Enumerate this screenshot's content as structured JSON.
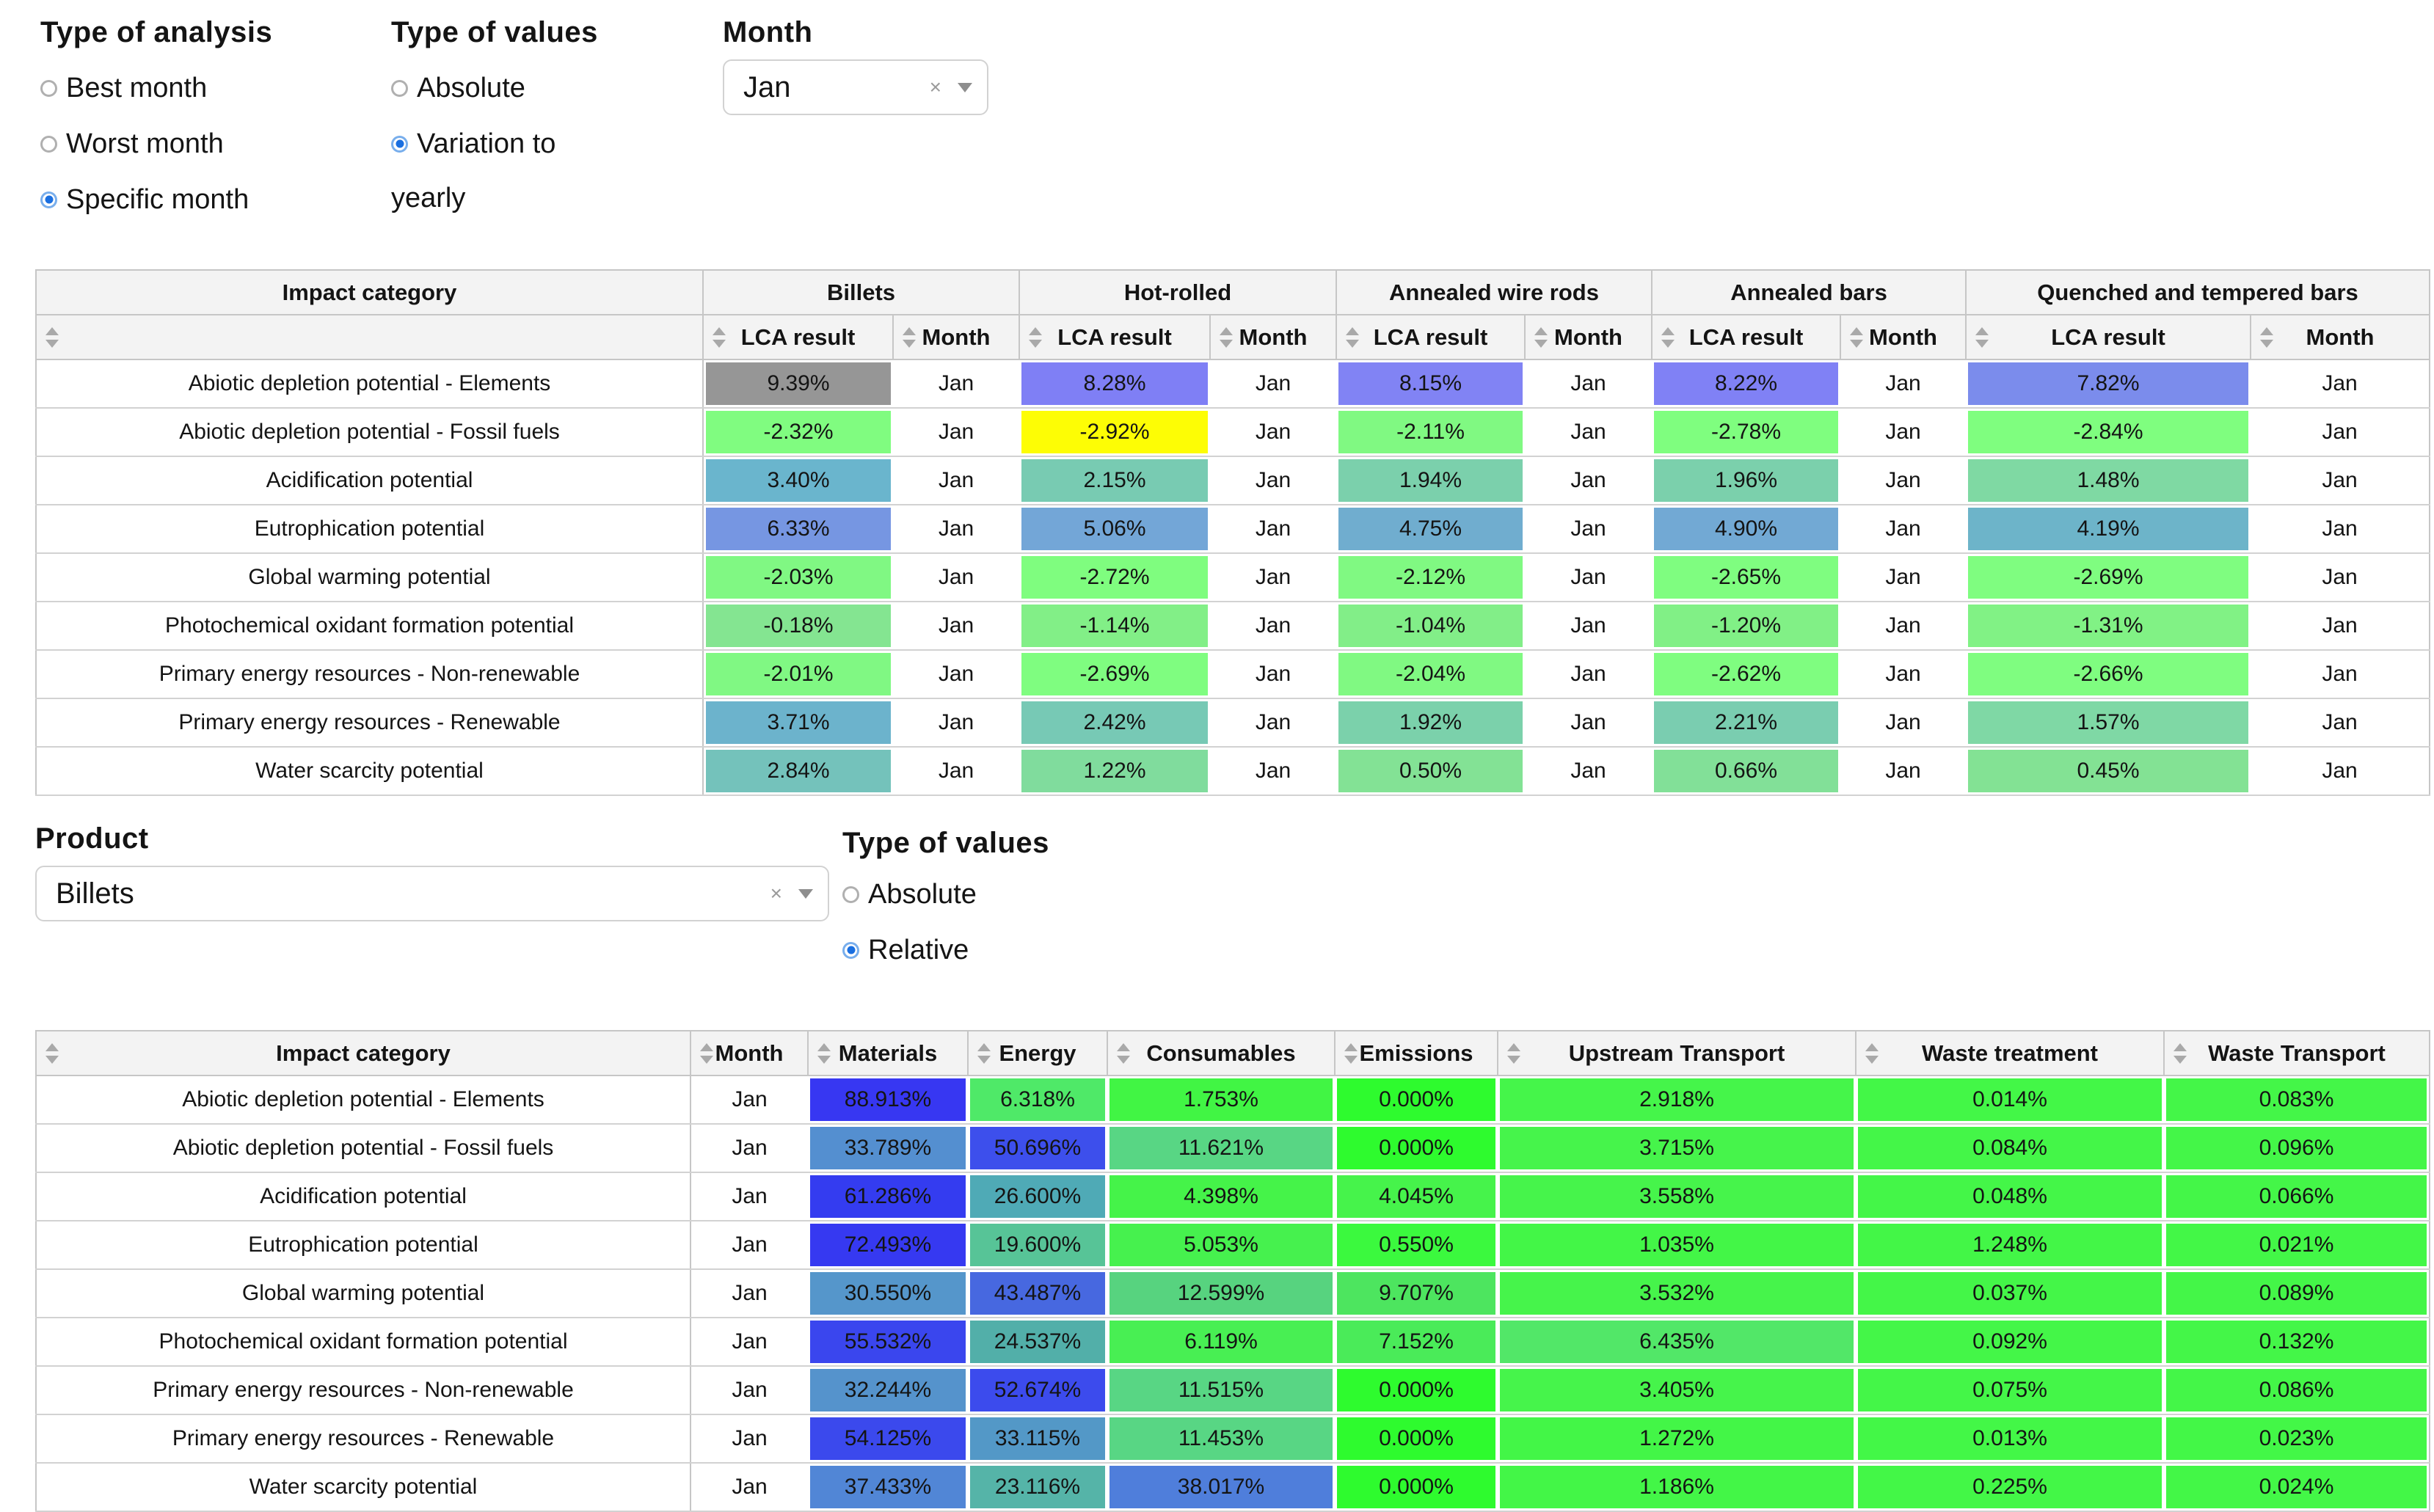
{
  "icons": {
    "clear": "×",
    "dropdown": "chevron-down-triangle",
    "sort": "up-down-sort-triangles"
  },
  "controls": {
    "analysis": {
      "label": "Type of analysis",
      "options": [
        "Best month",
        "Worst month",
        "Specific month"
      ],
      "selected": "Specific month"
    },
    "values_top": {
      "label": "Type of values",
      "options": [
        "Absolute",
        "Variation to yearly"
      ],
      "selected": "Variation to yearly",
      "line1": "Variation to",
      "line2": "yearly"
    },
    "month": {
      "label": "Month",
      "value": "Jan"
    },
    "product": {
      "label": "Product",
      "value": "Billets"
    },
    "values_bottom": {
      "label": "Type of values",
      "options": [
        "Absolute",
        "Relative"
      ],
      "selected": "Relative"
    }
  },
  "table1": {
    "corner_header": "Impact category",
    "groups": [
      "Billets",
      "Hot-rolled",
      "Annealed wire rods",
      "Annealed bars",
      "Quenched and tempered bars"
    ],
    "sub_headers": [
      "LCA result",
      "Month"
    ],
    "rows": [
      {
        "category": "Abiotic depletion potential - Elements",
        "entries": [
          {
            "lca": "9.39%",
            "bg": "#969696",
            "month": "Jan"
          },
          {
            "lca": "8.28%",
            "bg": "#7f7ff5",
            "month": "Jan"
          },
          {
            "lca": "8.15%",
            "bg": "#8183f4",
            "month": "Jan"
          },
          {
            "lca": "8.22%",
            "bg": "#8081f5",
            "month": "Jan"
          },
          {
            "lca": "7.82%",
            "bg": "#7b8cec",
            "month": "Jan"
          }
        ]
      },
      {
        "category": "Abiotic depletion potential - Fossil fuels",
        "entries": [
          {
            "lca": "-2.32%",
            "bg": "#80fc80",
            "month": "Jan"
          },
          {
            "lca": "-2.92%",
            "bg": "#fdfd05",
            "month": "Jan"
          },
          {
            "lca": "-2.11%",
            "bg": "#80f982",
            "month": "Jan"
          },
          {
            "lca": "-2.78%",
            "bg": "#7ffe7f",
            "month": "Jan"
          },
          {
            "lca": "-2.84%",
            "bg": "#7ffe7f",
            "month": "Jan"
          }
        ]
      },
      {
        "category": "Acidification potential",
        "entries": [
          {
            "lca": "3.40%",
            "bg": "#6ab5cd",
            "month": "Jan"
          },
          {
            "lca": "2.15%",
            "bg": "#78cbb2",
            "month": "Jan"
          },
          {
            "lca": "1.94%",
            "bg": "#7bd0ac",
            "month": "Jan"
          },
          {
            "lca": "1.96%",
            "bg": "#7bd0ac",
            "month": "Jan"
          },
          {
            "lca": "1.48%",
            "bg": "#7fd9a3",
            "month": "Jan"
          }
        ]
      },
      {
        "category": "Eutrophication potential",
        "entries": [
          {
            "lca": "6.33%",
            "bg": "#7696e2",
            "month": "Jan"
          },
          {
            "lca": "5.06%",
            "bg": "#73a6d7",
            "month": "Jan"
          },
          {
            "lca": "4.75%",
            "bg": "#70adcf",
            "month": "Jan"
          },
          {
            "lca": "4.90%",
            "bg": "#72a9d4",
            "month": "Jan"
          },
          {
            "lca": "4.19%",
            "bg": "#6db4c9",
            "month": "Jan"
          }
        ]
      },
      {
        "category": "Global warming potential",
        "entries": [
          {
            "lca": "-2.03%",
            "bg": "#80f883",
            "month": "Jan"
          },
          {
            "lca": "-2.72%",
            "bg": "#7ffd7f",
            "month": "Jan"
          },
          {
            "lca": "-2.12%",
            "bg": "#80f982",
            "month": "Jan"
          },
          {
            "lca": "-2.65%",
            "bg": "#7ffd80",
            "month": "Jan"
          },
          {
            "lca": "-2.69%",
            "bg": "#7ffd80",
            "month": "Jan"
          }
        ]
      },
      {
        "category": "Photochemical oxidant formation potential",
        "entries": [
          {
            "lca": "-0.18%",
            "bg": "#84e591",
            "month": "Jan"
          },
          {
            "lca": "-1.14%",
            "bg": "#82ef87",
            "month": "Jan"
          },
          {
            "lca": "-1.04%",
            "bg": "#82ee88",
            "month": "Jan"
          },
          {
            "lca": "-1.20%",
            "bg": "#81f086",
            "month": "Jan"
          },
          {
            "lca": "-1.31%",
            "bg": "#81f285",
            "month": "Jan"
          }
        ]
      },
      {
        "category": "Primary energy resources - Non-renewable",
        "entries": [
          {
            "lca": "-2.01%",
            "bg": "#80f883",
            "month": "Jan"
          },
          {
            "lca": "-2.69%",
            "bg": "#7ffd80",
            "month": "Jan"
          },
          {
            "lca": "-2.04%",
            "bg": "#80f982",
            "month": "Jan"
          },
          {
            "lca": "-2.62%",
            "bg": "#7ffd80",
            "month": "Jan"
          },
          {
            "lca": "-2.66%",
            "bg": "#7ffd80",
            "month": "Jan"
          }
        ]
      },
      {
        "category": "Primary energy resources - Renewable",
        "entries": [
          {
            "lca": "3.71%",
            "bg": "#6cb3cc",
            "month": "Jan"
          },
          {
            "lca": "2.42%",
            "bg": "#77c9b5",
            "month": "Jan"
          },
          {
            "lca": "1.92%",
            "bg": "#7bd1ab",
            "month": "Jan"
          },
          {
            "lca": "2.21%",
            "bg": "#7acdb0",
            "month": "Jan"
          },
          {
            "lca": "1.57%",
            "bg": "#7fd8a5",
            "month": "Jan"
          }
        ]
      },
      {
        "category": "Water scarcity potential",
        "entries": [
          {
            "lca": "2.84%",
            "bg": "#74c2bb",
            "month": "Jan"
          },
          {
            "lca": "1.22%",
            "bg": "#80dc9d",
            "month": "Jan"
          },
          {
            "lca": "0.50%",
            "bg": "#83e295",
            "month": "Jan"
          },
          {
            "lca": "0.66%",
            "bg": "#82e098",
            "month": "Jan"
          },
          {
            "lca": "0.45%",
            "bg": "#83e294",
            "month": "Jan"
          }
        ]
      }
    ]
  },
  "table2": {
    "headers": [
      "Impact category",
      "Month",
      "Materials",
      "Energy",
      "Consumables",
      "Emissions",
      "Upstream Transport",
      "Waste treatment",
      "Waste Transport"
    ],
    "rows": [
      {
        "category": "Abiotic depletion potential - Elements",
        "month": "Jan",
        "values": [
          {
            "v": "88.913%",
            "bg": "#3737f2"
          },
          {
            "v": "6.318%",
            "bg": "#4fe968"
          },
          {
            "v": "1.753%",
            "bg": "#41f544"
          },
          {
            "v": "0.000%",
            "bg": "#2efb2e"
          },
          {
            "v": "2.918%",
            "bg": "#45f54a"
          },
          {
            "v": "0.014%",
            "bg": "#43f747"
          },
          {
            "v": "0.083%",
            "bg": "#44f648"
          }
        ]
      },
      {
        "category": "Abiotic depletion potential - Fossil fuels",
        "month": "Jan",
        "values": [
          {
            "v": "33.789%",
            "bg": "#548fd0"
          },
          {
            "v": "50.696%",
            "bg": "#3d4fec"
          },
          {
            "v": "11.621%",
            "bg": "#58d684"
          },
          {
            "v": "0.000%",
            "bg": "#2efb2e"
          },
          {
            "v": "3.715%",
            "bg": "#46f44b"
          },
          {
            "v": "0.084%",
            "bg": "#44f648"
          },
          {
            "v": "0.096%",
            "bg": "#44f648"
          }
        ]
      },
      {
        "category": "Acidification potential",
        "month": "Jan",
        "values": [
          {
            "v": "61.286%",
            "bg": "#343cf0"
          },
          {
            "v": "26.600%",
            "bg": "#4faab6"
          },
          {
            "v": "4.398%",
            "bg": "#45f349"
          },
          {
            "v": "4.045%",
            "bg": "#46f34b"
          },
          {
            "v": "3.558%",
            "bg": "#46f44b"
          },
          {
            "v": "0.048%",
            "bg": "#44f648"
          },
          {
            "v": "0.066%",
            "bg": "#44f648"
          }
        ]
      },
      {
        "category": "Eutrophication potential",
        "month": "Jan",
        "values": [
          {
            "v": "72.493%",
            "bg": "#3639f1"
          },
          {
            "v": "19.600%",
            "bg": "#57c497"
          },
          {
            "v": "5.053%",
            "bg": "#46f14e"
          },
          {
            "v": "0.550%",
            "bg": "#3bf93e"
          },
          {
            "v": "1.035%",
            "bg": "#43f647"
          },
          {
            "v": "1.248%",
            "bg": "#43f647"
          },
          {
            "v": "0.021%",
            "bg": "#43f747"
          }
        ]
      },
      {
        "category": "Global warming potential",
        "month": "Jan",
        "values": [
          {
            "v": "30.550%",
            "bg": "#5596cb"
          },
          {
            "v": "43.487%",
            "bg": "#4768e0"
          },
          {
            "v": "12.599%",
            "bg": "#57d37f"
          },
          {
            "v": "9.707%",
            "bg": "#4de55f"
          },
          {
            "v": "3.532%",
            "bg": "#46f44b"
          },
          {
            "v": "0.037%",
            "bg": "#44f648"
          },
          {
            "v": "0.089%",
            "bg": "#44f648"
          }
        ]
      },
      {
        "category": "Photochemical oxidant formation potential",
        "month": "Jan",
        "values": [
          {
            "v": "55.532%",
            "bg": "#3a46ee"
          },
          {
            "v": "24.537%",
            "bg": "#52afa9"
          },
          {
            "v": "6.119%",
            "bg": "#48ef53"
          },
          {
            "v": "7.152%",
            "bg": "#4aeb59"
          },
          {
            "v": "6.435%",
            "bg": "#52e768"
          },
          {
            "v": "0.092%",
            "bg": "#44f648"
          },
          {
            "v": "0.132%",
            "bg": "#44f648"
          }
        ]
      },
      {
        "category": "Primary energy resources - Non-renewable",
        "month": "Jan",
        "values": [
          {
            "v": "32.244%",
            "bg": "#5593cc"
          },
          {
            "v": "52.674%",
            "bg": "#3c4bed"
          },
          {
            "v": "11.515%",
            "bg": "#58d684"
          },
          {
            "v": "0.000%",
            "bg": "#2efb2e"
          },
          {
            "v": "3.405%",
            "bg": "#46f44b"
          },
          {
            "v": "0.075%",
            "bg": "#44f648"
          },
          {
            "v": "0.086%",
            "bg": "#44f648"
          }
        ]
      },
      {
        "category": "Primary energy resources - Renewable",
        "month": "Jan",
        "values": [
          {
            "v": "54.125%",
            "bg": "#3b49ed"
          },
          {
            "v": "33.115%",
            "bg": "#5398c7"
          },
          {
            "v": "11.453%",
            "bg": "#58d684"
          },
          {
            "v": "0.000%",
            "bg": "#2efb2e"
          },
          {
            "v": "1.272%",
            "bg": "#43f647"
          },
          {
            "v": "0.013%",
            "bg": "#43f747"
          },
          {
            "v": "0.023%",
            "bg": "#43f747"
          }
        ]
      },
      {
        "category": "Water scarcity potential",
        "month": "Jan",
        "values": [
          {
            "v": "37.433%",
            "bg": "#5186d6"
          },
          {
            "v": "23.116%",
            "bg": "#55b4a8"
          },
          {
            "v": "38.017%",
            "bg": "#4f7edb"
          },
          {
            "v": "0.000%",
            "bg": "#2efb2e"
          },
          {
            "v": "1.186%",
            "bg": "#43f647"
          },
          {
            "v": "0.225%",
            "bg": "#43f747"
          },
          {
            "v": "0.024%",
            "bg": "#43f747"
          }
        ]
      }
    ]
  }
}
